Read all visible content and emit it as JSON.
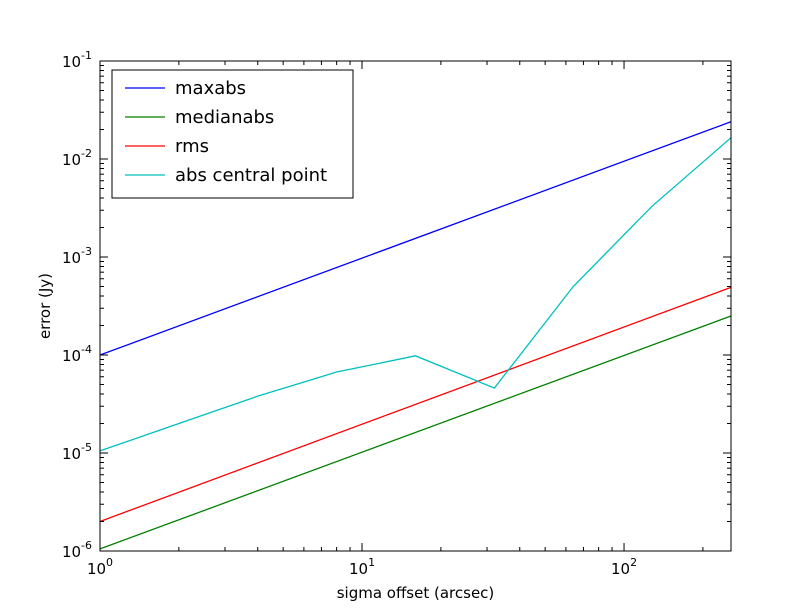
{
  "chart_data": {
    "type": "line",
    "title": "",
    "xlabel": "sigma offset (arcsec)",
    "ylabel": "error (Jy)",
    "xscale": "log",
    "yscale": "log",
    "xlim": [
      1,
      256
    ],
    "ylim": [
      1e-06,
      0.1
    ],
    "grid": false,
    "legend_position": "top-left",
    "x_ticks": [
      {
        "value": 1,
        "base": "10",
        "exp": "0"
      },
      {
        "value": 10,
        "base": "10",
        "exp": "1"
      },
      {
        "value": 100,
        "base": "10",
        "exp": "2"
      }
    ],
    "y_ticks": [
      {
        "value": 1e-06,
        "base": "10",
        "exp": "-6"
      },
      {
        "value": 1e-05,
        "base": "10",
        "exp": "-5"
      },
      {
        "value": 0.0001,
        "base": "10",
        "exp": "-4"
      },
      {
        "value": 0.001,
        "base": "10",
        "exp": "-3"
      },
      {
        "value": 0.01,
        "base": "10",
        "exp": "-2"
      },
      {
        "value": 0.1,
        "base": "10",
        "exp": "-1"
      }
    ],
    "series": [
      {
        "name": "maxabs",
        "color": "#0000ff",
        "x": [
          1,
          256
        ],
        "y": [
          0.0001,
          0.024
        ]
      },
      {
        "name": "medianabs",
        "color": "#008000",
        "x": [
          1,
          256
        ],
        "y": [
          1.05e-06,
          0.00025
        ]
      },
      {
        "name": "rms",
        "color": "#ff0000",
        "x": [
          1,
          256
        ],
        "y": [
          2e-06,
          0.00049
        ]
      },
      {
        "name": "abs central point",
        "color": "#00bfbf",
        "x": [
          1,
          2,
          4,
          8,
          16,
          32,
          64,
          128,
          256
        ],
        "y": [
          1.05e-05,
          2e-05,
          3.8e-05,
          6.7e-05,
          9.8e-05,
          4.6e-05,
          0.0005,
          0.0033,
          0.0165
        ]
      }
    ]
  }
}
